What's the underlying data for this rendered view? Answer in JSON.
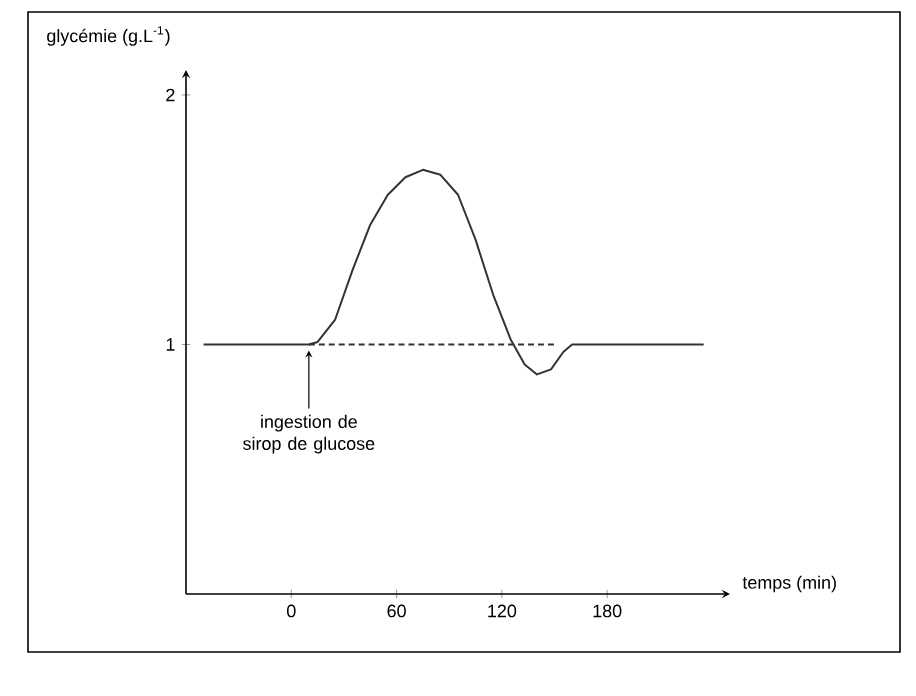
{
  "chart_data": {
    "type": "line",
    "xlabel": "temps (min)",
    "ylabel": "glycémie (g.L$^{-1}$)",
    "xlim": [
      -60,
      250
    ],
    "ylim": [
      0,
      2.1
    ],
    "xticks": [
      0,
      60,
      120,
      180
    ],
    "yticks": [
      1,
      2
    ],
    "series": [
      {
        "color": "#333333",
        "line_style": "solid",
        "x": [
          -50,
          10,
          15,
          25,
          35,
          45,
          55,
          65,
          75,
          85,
          95,
          105,
          115,
          125,
          133,
          140,
          148,
          155,
          160,
          235
        ],
        "values": [
          1,
          1,
          1.01,
          1.1,
          1.3,
          1.48,
          1.6,
          1.67,
          1.7,
          1.68,
          1.6,
          1.42,
          1.2,
          1.02,
          0.92,
          0.88,
          0.9,
          0.97,
          1,
          1
        ]
      },
      {
        "color": "#333333",
        "line_style": "dashed",
        "x": [
          10,
          150
        ],
        "values": [
          1,
          1
        ]
      }
    ],
    "annotations": [
      {
        "text": "ingestion de sirop de glucose",
        "x": 10,
        "y": 1
      }
    ]
  }
}
